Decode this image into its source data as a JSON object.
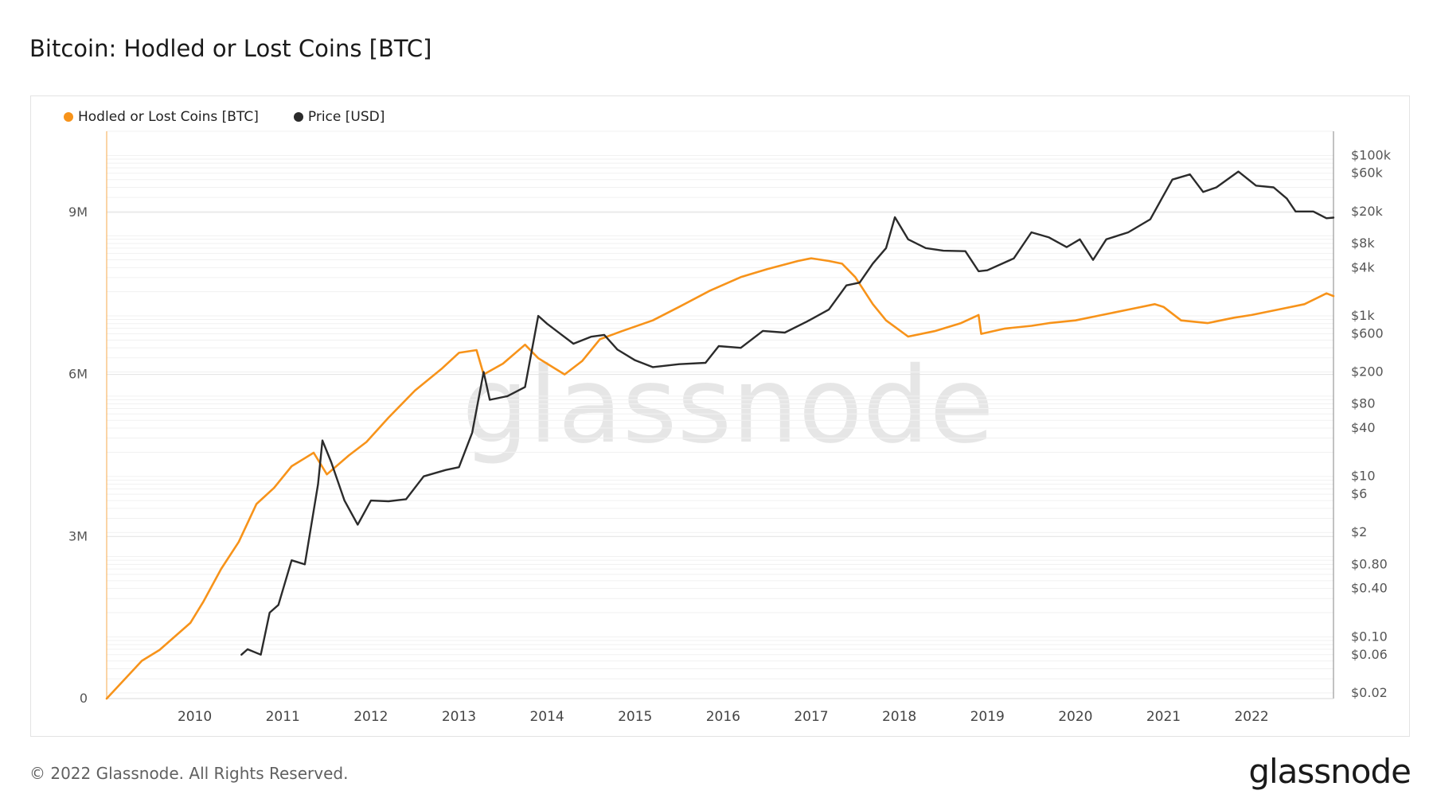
{
  "page": {
    "title": "Bitcoin: Hodled or Lost Coins [BTC]",
    "footer": "© 2022 Glassnode. All Rights Reserved.",
    "brand": "glassnode",
    "watermark": "glassnode"
  },
  "chart_data": {
    "type": "line",
    "title": "Bitcoin: Hodled or Lost Coins [BTC]",
    "x_ticks": [
      "2010",
      "2011",
      "2012",
      "2013",
      "2014",
      "2015",
      "2016",
      "2017",
      "2018",
      "2019",
      "2020",
      "2021",
      "2022"
    ],
    "x_range": [
      2009.0,
      2022.93
    ],
    "y_left": {
      "range": [
        0,
        10500000
      ],
      "ticks": [
        0,
        3000000,
        6000000,
        9000000
      ],
      "tick_labels": [
        "0",
        "3M",
        "6M",
        "9M"
      ]
    },
    "y_right": {
      "scale": "log",
      "range": [
        0.017,
        200000
      ],
      "ticks": [
        100000,
        60000,
        20000,
        8000,
        4000,
        1000,
        600,
        200,
        80,
        40,
        10,
        6,
        2,
        0.8,
        0.4,
        0.1,
        0.06,
        0.02
      ],
      "tick_labels": [
        "$100k",
        "$60k",
        "$20k",
        "$8k",
        "$4k",
        "$1k",
        "$600",
        "$200",
        "$80",
        "$40",
        "$10",
        "$6",
        "$2",
        "$0.80",
        "$0.40",
        "$0.10",
        "$0.06",
        "$0.02"
      ]
    },
    "grid": true,
    "legend_position": "top-left",
    "series": [
      {
        "name": "Hodled or Lost Coins [BTC]",
        "axis": "left",
        "color": "#f7931a",
        "points": [
          [
            2009.0,
            0
          ],
          [
            2009.2,
            350000
          ],
          [
            2009.4,
            700000
          ],
          [
            2009.6,
            900000
          ],
          [
            2009.95,
            1400000
          ],
          [
            2010.1,
            1800000
          ],
          [
            2010.3,
            2400000
          ],
          [
            2010.5,
            2900000
          ],
          [
            2010.7,
            3600000
          ],
          [
            2010.9,
            3900000
          ],
          [
            2011.1,
            4300000
          ],
          [
            2011.35,
            4550000
          ],
          [
            2011.5,
            4150000
          ],
          [
            2011.75,
            4500000
          ],
          [
            2011.95,
            4750000
          ],
          [
            2012.2,
            5200000
          ],
          [
            2012.5,
            5700000
          ],
          [
            2012.8,
            6100000
          ],
          [
            2013.0,
            6400000
          ],
          [
            2013.2,
            6450000
          ],
          [
            2013.28,
            6000000
          ],
          [
            2013.5,
            6200000
          ],
          [
            2013.75,
            6550000
          ],
          [
            2013.9,
            6300000
          ],
          [
            2014.0,
            6200000
          ],
          [
            2014.2,
            6000000
          ],
          [
            2014.4,
            6250000
          ],
          [
            2014.6,
            6650000
          ],
          [
            2014.85,
            6800000
          ],
          [
            2015.2,
            7000000
          ],
          [
            2015.5,
            7250000
          ],
          [
            2015.85,
            7550000
          ],
          [
            2016.2,
            7800000
          ],
          [
            2016.5,
            7950000
          ],
          [
            2016.85,
            8100000
          ],
          [
            2017.0,
            8150000
          ],
          [
            2017.2,
            8100000
          ],
          [
            2017.35,
            8050000
          ],
          [
            2017.5,
            7800000
          ],
          [
            2017.7,
            7300000
          ],
          [
            2017.85,
            7000000
          ],
          [
            2018.1,
            6700000
          ],
          [
            2018.4,
            6800000
          ],
          [
            2018.7,
            6950000
          ],
          [
            2018.9,
            7100000
          ],
          [
            2018.93,
            6750000
          ],
          [
            2019.2,
            6850000
          ],
          [
            2019.5,
            6900000
          ],
          [
            2019.7,
            6950000
          ],
          [
            2020.0,
            7000000
          ],
          [
            2020.3,
            7100000
          ],
          [
            2020.6,
            7200000
          ],
          [
            2020.9,
            7300000
          ],
          [
            2021.0,
            7250000
          ],
          [
            2021.2,
            7000000
          ],
          [
            2021.5,
            6950000
          ],
          [
            2021.8,
            7050000
          ],
          [
            2022.0,
            7100000
          ],
          [
            2022.3,
            7200000
          ],
          [
            2022.6,
            7300000
          ],
          [
            2022.85,
            7500000
          ],
          [
            2022.93,
            7450000
          ]
        ]
      },
      {
        "name": "Price [USD]",
        "axis": "right",
        "color": "#2b2b2b",
        "points": [
          [
            2010.53,
            0.06
          ],
          [
            2010.6,
            0.07
          ],
          [
            2010.75,
            0.06
          ],
          [
            2010.85,
            0.2
          ],
          [
            2010.95,
            0.25
          ],
          [
            2011.1,
            0.9
          ],
          [
            2011.25,
            0.8
          ],
          [
            2011.4,
            8
          ],
          [
            2011.45,
            28
          ],
          [
            2011.55,
            15
          ],
          [
            2011.7,
            5
          ],
          [
            2011.85,
            2.5
          ],
          [
            2012.0,
            5
          ],
          [
            2012.2,
            4.9
          ],
          [
            2012.4,
            5.2
          ],
          [
            2012.6,
            10
          ],
          [
            2012.85,
            12
          ],
          [
            2013.0,
            13
          ],
          [
            2013.15,
            35
          ],
          [
            2013.28,
            200
          ],
          [
            2013.35,
            90
          ],
          [
            2013.55,
            100
          ],
          [
            2013.75,
            130
          ],
          [
            2013.9,
            1000
          ],
          [
            2014.0,
            800
          ],
          [
            2014.15,
            600
          ],
          [
            2014.3,
            450
          ],
          [
            2014.5,
            550
          ],
          [
            2014.65,
            580
          ],
          [
            2014.8,
            380
          ],
          [
            2015.0,
            280
          ],
          [
            2015.2,
            230
          ],
          [
            2015.5,
            250
          ],
          [
            2015.8,
            260
          ],
          [
            2015.95,
            420
          ],
          [
            2016.2,
            400
          ],
          [
            2016.45,
            650
          ],
          [
            2016.7,
            620
          ],
          [
            2016.95,
            850
          ],
          [
            2017.2,
            1200
          ],
          [
            2017.4,
            2400
          ],
          [
            2017.55,
            2600
          ],
          [
            2017.7,
            4500
          ],
          [
            2017.85,
            7000
          ],
          [
            2017.95,
            17000
          ],
          [
            2018.1,
            9000
          ],
          [
            2018.3,
            7000
          ],
          [
            2018.5,
            6500
          ],
          [
            2018.75,
            6400
          ],
          [
            2018.9,
            3600
          ],
          [
            2019.0,
            3700
          ],
          [
            2019.3,
            5200
          ],
          [
            2019.5,
            11000
          ],
          [
            2019.7,
            9500
          ],
          [
            2019.9,
            7200
          ],
          [
            2020.05,
            9000
          ],
          [
            2020.2,
            5000
          ],
          [
            2020.35,
            9000
          ],
          [
            2020.6,
            11000
          ],
          [
            2020.85,
            16000
          ],
          [
            2020.98,
            29000
          ],
          [
            2021.1,
            50000
          ],
          [
            2021.3,
            58000
          ],
          [
            2021.45,
            35000
          ],
          [
            2021.6,
            40000
          ],
          [
            2021.85,
            63000
          ],
          [
            2022.05,
            42000
          ],
          [
            2022.25,
            40000
          ],
          [
            2022.4,
            29000
          ],
          [
            2022.5,
            20000
          ],
          [
            2022.7,
            20000
          ],
          [
            2022.85,
            16500
          ],
          [
            2022.93,
            16800
          ]
        ]
      }
    ]
  }
}
